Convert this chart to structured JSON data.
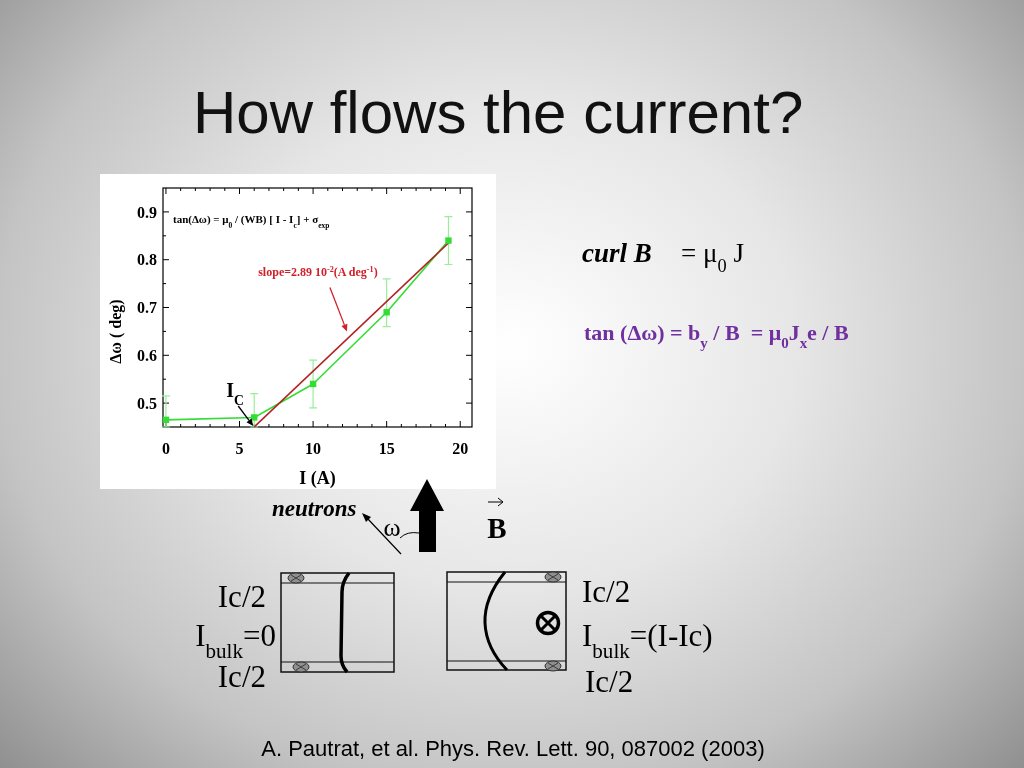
{
  "chart_data": {
    "type": "line",
    "title": "How flows the current?",
    "xlabel": "I (A)",
    "ylabel": "Δω ( deg)",
    "xlim": [
      -0.2,
      20.8
    ],
    "ylim": [
      0.45,
      0.95
    ],
    "xticks": [
      0,
      {
        "value": 1,
        "label": null
      },
      {
        "value": 2,
        "label": null
      },
      {
        "value": 3,
        "label": null
      },
      {
        "value": 4,
        "label": null
      },
      5,
      {
        "value": 6,
        "label": null
      },
      {
        "value": 7,
        "label": null
      },
      {
        "value": 8,
        "label": null
      },
      {
        "value": 9,
        "label": null
      },
      10,
      {
        "value": 11,
        "label": null
      },
      {
        "value": 12,
        "label": null
      },
      {
        "value": 13,
        "label": null
      },
      {
        "value": 14,
        "label": null
      },
      15,
      {
        "value": 16,
        "label": null
      },
      {
        "value": 17,
        "label": null
      },
      {
        "value": 18,
        "label": null
      },
      {
        "value": 19,
        "label": null
      },
      20
    ],
    "yticks": [
      0.5,
      {
        "value": 0.55,
        "label": null
      },
      0.6,
      {
        "value": 0.65,
        "label": null
      },
      0.7,
      {
        "value": 0.75,
        "label": null
      },
      0.8,
      {
        "value": 0.85,
        "label": null
      },
      0.9
    ],
    "marker": "square",
    "line_style": "solid",
    "series": [
      {
        "x": [
          0,
          6,
          10,
          15,
          19.2
        ],
        "values": [
          0.465,
          0.47,
          0.54,
          0.69,
          0.84
        ],
        "color": "#33dd33",
        "errors": [
          [
            0.45,
            0.515
          ],
          [
            0.45,
            0.52
          ],
          [
            0.49,
            0.59
          ],
          [
            0.66,
            0.76
          ],
          [
            0.79,
            0.89
          ]
        ]
      },
      {
        "type": "line",
        "x": [
          6,
          19.2
        ],
        "values": [
          0.45,
          0.835
        ],
        "color": "#b22222",
        "marker": "none"
      }
    ],
    "annotations": [
      "tan(Δω) = μ$_{0}$ / (WB) [ I - I$_{c}$] + σ$_{exp}$",
      {
        "text": "slope=2.89 10$^{-2}$(A deg$^{-1}$)",
        "x": 12.3,
        "y": 0.65
      },
      {
        "text": "I$_{C}$",
        "x": 6,
        "y": 0.45
      },
      "curl B",
      "= μ$_{0}$ J",
      "tan (Δω) = b$_{y}$ / B  = μ$_{0}$J$_{x}$e / B",
      "neutrons",
      "ω",
      "B",
      "Ic/2",
      "I$_{bulk}$=0",
      "Ic/2",
      "Ic/2",
      "I$_{bulk}$=(I-Ic)",
      "Ic/2",
      "A. Pautrat, et al. Phys. Rev. Lett. 90, 087002 (2003)"
    ]
  }
}
